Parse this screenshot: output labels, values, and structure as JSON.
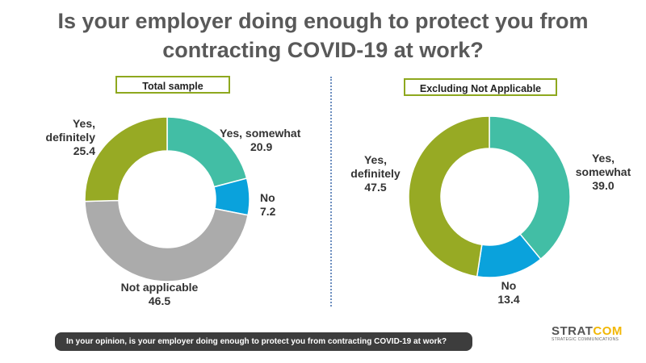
{
  "title": "Is your employer doing enough to protect you from contracting COVID-19 at work?",
  "colors": {
    "yes_definitely": "#97aa24",
    "yes_somewhat": "#42bea5",
    "no": "#0aa2dc",
    "not_applicable": "#ababab",
    "label_border": "#8ea81e"
  },
  "chart_data": [
    {
      "type": "pie",
      "title": "Total sample",
      "categories": [
        "Yes, somewhat",
        "No",
        "Not applicable",
        "Yes, definitely"
      ],
      "values": [
        20.9,
        7.2,
        46.5,
        25.4
      ],
      "labels": {
        "yes_somewhat": {
          "name": "Yes, somewhat",
          "value": "20.9"
        },
        "no": {
          "name": "No",
          "value": "7.2"
        },
        "not_applicable": {
          "name": "Not applicable",
          "value": "46.5"
        },
        "yes_definitely": {
          "name_line1": "Yes,",
          "name_line2": "definitely",
          "value": "25.4"
        }
      }
    },
    {
      "type": "pie",
      "title": "Excluding Not Applicable",
      "categories": [
        "Yes, somewhat",
        "No",
        "Yes, definitely"
      ],
      "values": [
        39.0,
        13.4,
        47.5
      ],
      "labels": {
        "yes_somewhat": {
          "name_line1": "Yes,",
          "name_line2": "somewhat",
          "value": "39.0"
        },
        "no": {
          "name": "No",
          "value": "13.4"
        },
        "yes_definitely": {
          "name_line1": "Yes,",
          "name_line2": "definitely",
          "value": "47.5"
        }
      }
    }
  ],
  "question": "In your opinion, is your employer doing enough to protect you from contracting COVID-19 at work?",
  "logo": {
    "text_main": "STRAT",
    "text_accent": "COM",
    "subtitle": "STRATEGIC COMMUNICATIONS"
  }
}
